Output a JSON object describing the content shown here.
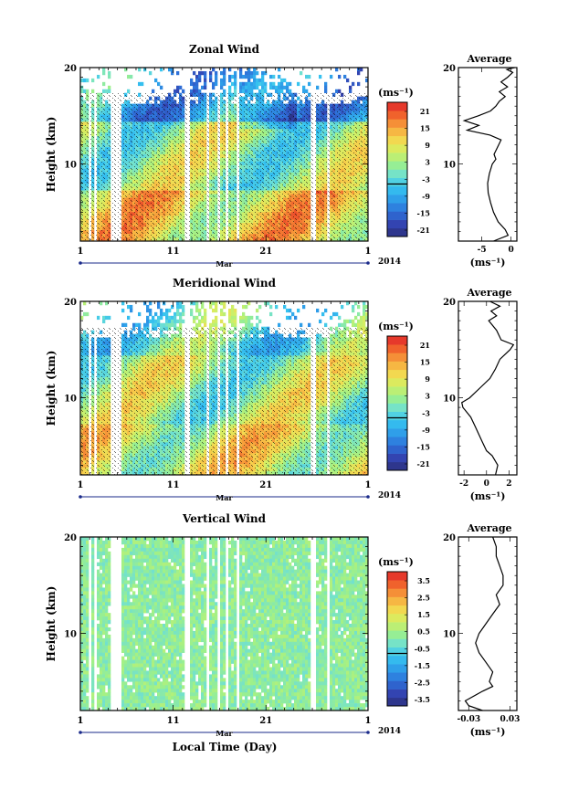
{
  "figure": {
    "xlabel_bottom": "Local Time (Day)",
    "month_label": "Mar",
    "year_label": "2014",
    "unit_label": "(ms⁻¹)",
    "average_title": "Average"
  },
  "chart_data": [
    {
      "type": "heatmap",
      "title": "Zonal Wind",
      "ylabel": "Height (km)",
      "xlabel": "",
      "x_ticks": [
        "1",
        "11",
        "21",
        "1"
      ],
      "y_ticks": [
        "20",
        "10"
      ],
      "ylim": [
        2,
        20
      ],
      "colorbar": {
        "label": "(ms⁻¹)",
        "ticks": [
          "21",
          "15",
          "9",
          "3",
          "-3",
          "-9",
          "-15",
          "-21"
        ],
        "range": [
          -24,
          24
        ]
      },
      "profile": {
        "title": "Average",
        "xlabel": "(ms⁻¹)",
        "x_ticks": [
          "-5",
          "0"
        ],
        "y_ticks": [
          "20",
          "10"
        ],
        "xlim": [
          -9,
          1
        ],
        "points": [
          [
            -3.0,
            2
          ],
          [
            -0.5,
            2.6
          ],
          [
            -1.0,
            3.2
          ],
          [
            -2.2,
            4
          ],
          [
            -3.0,
            5
          ],
          [
            -3.5,
            6
          ],
          [
            -3.9,
            7
          ],
          [
            -4.0,
            8
          ],
          [
            -3.7,
            9
          ],
          [
            -3.2,
            10
          ],
          [
            -2.6,
            10.5
          ],
          [
            -2.9,
            11
          ],
          [
            -2.1,
            12
          ],
          [
            -1.7,
            12.5
          ],
          [
            -3.6,
            13
          ],
          [
            -7.5,
            13.5
          ],
          [
            -5.5,
            14
          ],
          [
            -8.0,
            14.5
          ],
          [
            -5.6,
            15
          ],
          [
            -3.5,
            15.5
          ],
          [
            -2.6,
            16
          ],
          [
            -2.0,
            16.5
          ],
          [
            -1.0,
            17
          ],
          [
            -2.0,
            17.5
          ],
          [
            -0.6,
            18
          ],
          [
            -1.7,
            18.5
          ],
          [
            -0.6,
            19
          ],
          [
            0.3,
            19.5
          ],
          [
            -0.7,
            19.8
          ],
          [
            0.6,
            20
          ]
        ]
      }
    },
    {
      "type": "heatmap",
      "title": "Meridional Wind",
      "ylabel": "Height (km)",
      "xlabel": "",
      "x_ticks": [
        "1",
        "11",
        "21",
        "1"
      ],
      "y_ticks": [
        "20",
        "10"
      ],
      "ylim": [
        2,
        20
      ],
      "colorbar": {
        "label": "(ms⁻¹)",
        "ticks": [
          "21",
          "15",
          "9",
          "3",
          "-3",
          "-9",
          "-15",
          "-21"
        ],
        "range": [
          -24,
          24
        ]
      },
      "profile": {
        "title": "Average",
        "xlabel": "(ms⁻¹)",
        "x_ticks": [
          "-2",
          "0",
          "2"
        ],
        "y_ticks": [
          "20",
          "10"
        ],
        "xlim": [
          -2.5,
          2.7
        ],
        "points": [
          [
            0.8,
            2
          ],
          [
            1.0,
            3
          ],
          [
            0.5,
            4
          ],
          [
            0.0,
            4.5
          ],
          [
            -0.4,
            5.5
          ],
          [
            -1.0,
            7
          ],
          [
            -1.4,
            8
          ],
          [
            -2.1,
            9
          ],
          [
            -2.2,
            9.5
          ],
          [
            -1.5,
            10
          ],
          [
            -0.6,
            11
          ],
          [
            0.3,
            12
          ],
          [
            0.8,
            13
          ],
          [
            1.2,
            14
          ],
          [
            2.1,
            15
          ],
          [
            2.4,
            15.5
          ],
          [
            1.3,
            16
          ],
          [
            0.9,
            17
          ],
          [
            0.2,
            18
          ],
          [
            0.9,
            18.5
          ],
          [
            0.4,
            19
          ],
          [
            1.2,
            19.5
          ],
          [
            0.3,
            20
          ]
        ]
      }
    },
    {
      "type": "heatmap",
      "title": "Vertical Wind",
      "ylabel": "Height (km)",
      "xlabel": "Local Time (Day)",
      "x_ticks": [
        "1",
        "11",
        "21",
        "1"
      ],
      "y_ticks": [
        "20",
        "10"
      ],
      "ylim": [
        2,
        20
      ],
      "colorbar": {
        "label": "(ms⁻¹)",
        "ticks": [
          "3.5",
          "2.5",
          "1.5",
          "0.5",
          "-0.5",
          "-1.5",
          "-2.5",
          "-3.5"
        ],
        "range": [
          -4,
          4
        ]
      },
      "profile": {
        "title": "Average",
        "xlabel": "(ms⁻¹)",
        "x_ticks": [
          "-0.03",
          "0.03"
        ],
        "y_ticks": [
          "20",
          "10"
        ],
        "xlim": [
          -0.045,
          0.04
        ],
        "points": [
          [
            -0.01,
            2
          ],
          [
            -0.03,
            2.5
          ],
          [
            -0.035,
            3
          ],
          [
            -0.01,
            4
          ],
          [
            0.005,
            4.5
          ],
          [
            0.0,
            5
          ],
          [
            0.005,
            6
          ],
          [
            -0.005,
            7
          ],
          [
            -0.015,
            8
          ],
          [
            -0.02,
            9
          ],
          [
            -0.015,
            10
          ],
          [
            -0.005,
            11
          ],
          [
            0.005,
            12
          ],
          [
            0.015,
            13
          ],
          [
            0.01,
            14
          ],
          [
            0.02,
            15
          ],
          [
            0.02,
            16
          ],
          [
            0.015,
            17
          ],
          [
            0.01,
            18
          ],
          [
            0.01,
            19
          ],
          [
            0.005,
            20
          ]
        ]
      }
    }
  ]
}
